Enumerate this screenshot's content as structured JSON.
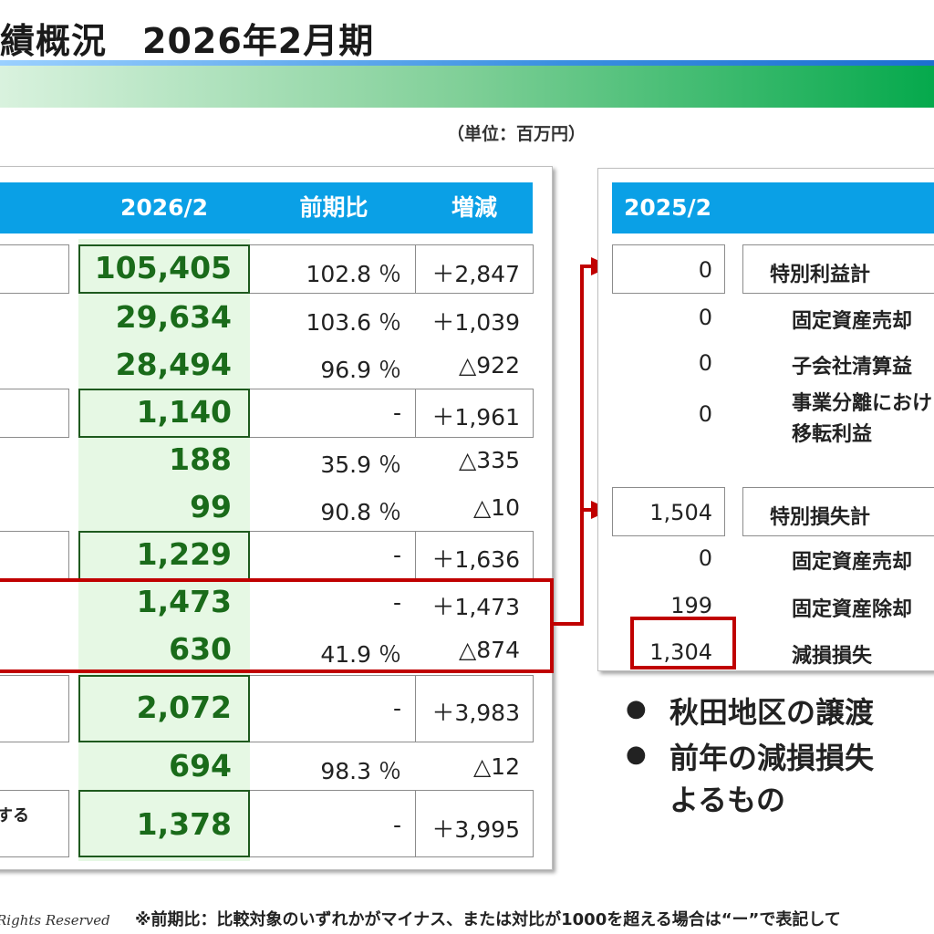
{
  "header": {
    "title": "績概況　2026年2月期",
    "unit": "（単位：百万円）"
  },
  "left_table": {
    "headers": [
      "2026/2",
      "前期比",
      "増減"
    ],
    "rows": [
      {
        "value": "105,405",
        "ratio": "102.8 ％",
        "diff": "＋2,847"
      },
      {
        "value": "29,634",
        "ratio": "103.6 ％",
        "diff": "＋1,039"
      },
      {
        "value": "28,494",
        "ratio": "96.9 ％",
        "diff": "△922"
      },
      {
        "value": "1,140",
        "ratio": "-",
        "diff": "＋1,961"
      },
      {
        "value": "188",
        "ratio": "35.9 ％",
        "diff": "△335"
      },
      {
        "value": "99",
        "ratio": "90.8 ％",
        "diff": "△10"
      },
      {
        "value": "1,229",
        "ratio": "-",
        "diff": "＋1,636"
      },
      {
        "value": "1,473",
        "ratio": "-",
        "diff": "＋1,473"
      },
      {
        "value": "630",
        "ratio": "41.9 ％",
        "diff": "△874"
      },
      {
        "value": "2,072",
        "ratio": "-",
        "diff": "＋3,983"
      },
      {
        "value": "694",
        "ratio": "98.3 ％",
        "diff": "△12"
      },
      {
        "value": "1,378",
        "ratio": "-",
        "diff": "＋3,995"
      }
    ],
    "partial_label": "する"
  },
  "right_table": {
    "header": "2025/2",
    "rows": [
      {
        "value": "0",
        "label": "特別利益計"
      },
      {
        "value": "0",
        "label": "固定資産売却"
      },
      {
        "value": "0",
        "label": "子会社清算益"
      },
      {
        "value": "0",
        "label_line1": "事業分離におけ",
        "label_line2": "移転利益"
      },
      {
        "value": "1,504",
        "label": "特別損失計"
      },
      {
        "value": "0",
        "label": "固定資産売却"
      },
      {
        "value": "199",
        "label": "固定資産除却"
      },
      {
        "value": "1,304",
        "label": "減損損失"
      }
    ]
  },
  "bullets": {
    "item1": "秋田地区の譲渡",
    "item2_line1": "前年の減損損失",
    "item2_line2": "よるもの"
  },
  "footer": {
    "rights": "Rights Reserved",
    "note": "※前期比：比較対象のいずれかがマイナス、または対比が1000を超える場合は“ー”で表記して"
  },
  "colors": {
    "header_blue": "#0aa0e6",
    "highlight_red": "#c00000",
    "value_green": "#1a6b1a",
    "column_green_bg": "#e6f8e4"
  }
}
